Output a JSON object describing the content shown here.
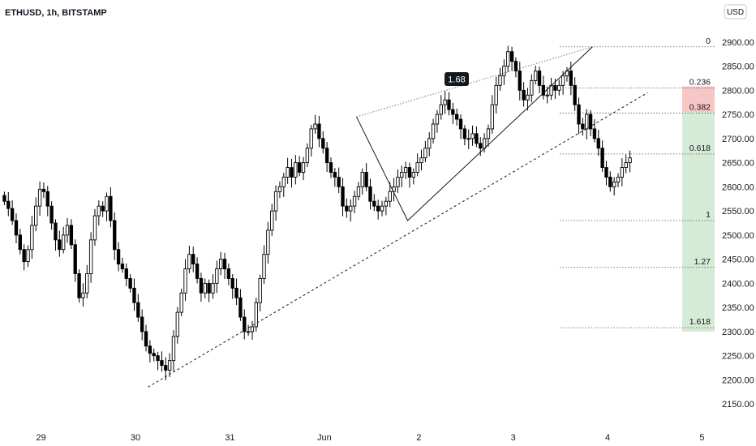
{
  "header": {
    "title": "ETHUSD, 1h, BITSTAMP"
  },
  "currency_button": {
    "label": "USD"
  },
  "chart_data": {
    "type": "candlestick",
    "symbol": "ETHUSD",
    "interval": "1h",
    "exchange": "BITSTAMP",
    "y_range": [
      2110,
      2940
    ],
    "y_ticks": [
      "2150.00",
      "2200.00",
      "2250.00",
      "2300.00",
      "2350.00",
      "2400.00",
      "2450.00",
      "2500.00",
      "2550.00",
      "2600.00",
      "2650.00",
      "2700.00",
      "2750.00",
      "2800.00",
      "2850.00",
      "2900.00"
    ],
    "x_labels": [
      {
        "label": "29",
        "bar": 9
      },
      {
        "label": "30",
        "bar": 33
      },
      {
        "label": "31",
        "bar": 57
      },
      {
        "label": "Jun",
        "bar": 81
      },
      {
        "label": "2",
        "bar": 105
      },
      {
        "label": "3",
        "bar": 129
      },
      {
        "label": "4",
        "bar": 153
      },
      {
        "label": "5",
        "bar": 177
      }
    ],
    "closes": [
      2570,
      2555,
      2530,
      2500,
      2470,
      2445,
      2470,
      2520,
      2560,
      2595,
      2590,
      2560,
      2525,
      2490,
      2470,
      2500,
      2520,
      2480,
      2420,
      2370,
      2380,
      2420,
      2490,
      2540,
      2560,
      2550,
      2580,
      2530,
      2470,
      2440,
      2430,
      2410,
      2390,
      2360,
      2330,
      2300,
      2270,
      2255,
      2250,
      2240,
      2230,
      2220,
      2240,
      2290,
      2340,
      2380,
      2430,
      2460,
      2440,
      2410,
      2380,
      2400,
      2380,
      2400,
      2430,
      2450,
      2430,
      2410,
      2390,
      2370,
      2330,
      2300,
      2300,
      2310,
      2360,
      2410,
      2460,
      2510,
      2550,
      2590,
      2600,
      2620,
      2640,
      2620,
      2650,
      2630,
      2650,
      2680,
      2720,
      2730,
      2700,
      2680,
      2650,
      2630,
      2620,
      2600,
      2560,
      2550,
      2560,
      2580,
      2600,
      2630,
      2600,
      2570,
      2560,
      2550,
      2560,
      2570,
      2590,
      2600,
      2620,
      2630,
      2640,
      2620,
      2630,
      2650,
      2660,
      2680,
      2700,
      2730,
      2750,
      2770,
      2780,
      2760,
      2750,
      2740,
      2720,
      2700,
      2700,
      2710,
      2690,
      2680,
      2700,
      2720,
      2770,
      2810,
      2830,
      2850,
      2880,
      2860,
      2840,
      2800,
      2780,
      2790,
      2820,
      2840,
      2810,
      2790,
      2790,
      2810,
      2800,
      2810,
      2830,
      2840,
      2810,
      2770,
      2730,
      2720,
      2750,
      2720,
      2700,
      2680,
      2640,
      2620,
      2600,
      2610,
      2620,
      2640,
      2650,
      2660
    ],
    "ohlc_notes": "Approximate hourly ETHUSD candles read from the chart; price low near 2185 on 30th, high near 2890 on 3rd.",
    "drawings": {
      "trendline": {
        "from": {
          "bar": 37,
          "price": 2185
        },
        "to": {
          "bar": 164,
          "price": 2795
        },
        "style": "dashed"
      },
      "zigzag": [
        {
          "bar": 90,
          "price": 2745
        },
        {
          "bar": 103,
          "price": 2530
        },
        {
          "bar": 150,
          "price": 2890
        }
      ],
      "ratio_badge": {
        "label": "1.68"
      },
      "fib_levels": [
        {
          "label": "0",
          "price": 2890
        },
        {
          "label": "0.236",
          "price": 2805
        },
        {
          "label": "0.382",
          "price": 2753
        },
        {
          "label": "0.618",
          "price": 2668
        },
        {
          "label": "1",
          "price": 2530
        },
        {
          "label": "1.27",
          "price": 2433
        },
        {
          "label": "1.618",
          "price": 2308
        }
      ],
      "risk_zone": {
        "top": 2808,
        "bottom": 2755,
        "color": "#f7c6c6"
      },
      "target_zone": {
        "top": 2755,
        "bottom": 2300,
        "color": "#d6ebd6"
      }
    },
    "colors": {
      "up_fill": "#ffffff",
      "down_fill": "#000000",
      "outline": "#000000",
      "axis_text": "#131722",
      "badge_bg": "#131722"
    }
  }
}
